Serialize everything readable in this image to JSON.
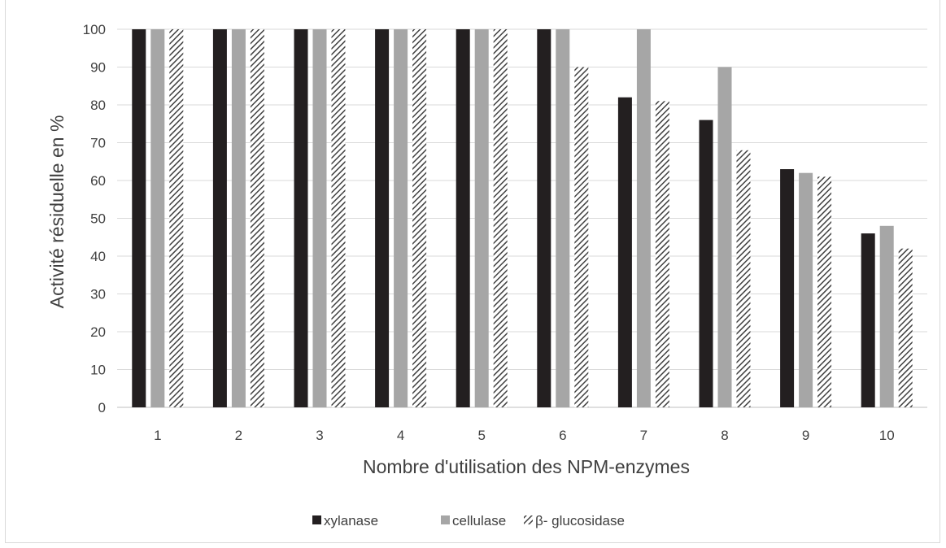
{
  "chart_data": {
    "type": "bar",
    "title": "",
    "xlabel": "Nombre d'utilisation des NPM-enzymes",
    "ylabel": "Activité résiduelle en %",
    "ylim": [
      0,
      100
    ],
    "yticks": [
      0,
      10,
      20,
      30,
      40,
      50,
      60,
      70,
      80,
      90,
      100
    ],
    "grid": true,
    "legend_position": "bottom",
    "categories": [
      "1",
      "2",
      "3",
      "4",
      "5",
      "6",
      "7",
      "8",
      "9",
      "10"
    ],
    "series": [
      {
        "name": "xylanase",
        "color": "#231f20",
        "pattern": "solid",
        "values": [
          100,
          100,
          100,
          100,
          100,
          100,
          82,
          76,
          63,
          46
        ]
      },
      {
        "name": "cellulase",
        "color": "#a6a6a6",
        "pattern": "solid",
        "values": [
          100,
          100,
          100,
          100,
          100,
          100,
          100,
          90,
          62,
          48
        ]
      },
      {
        "name": "β- glucosidase",
        "color": "#404040",
        "pattern": "diagonal-hatch",
        "values": [
          100,
          100,
          100,
          100,
          100,
          90,
          81,
          68,
          61,
          42
        ]
      }
    ]
  }
}
